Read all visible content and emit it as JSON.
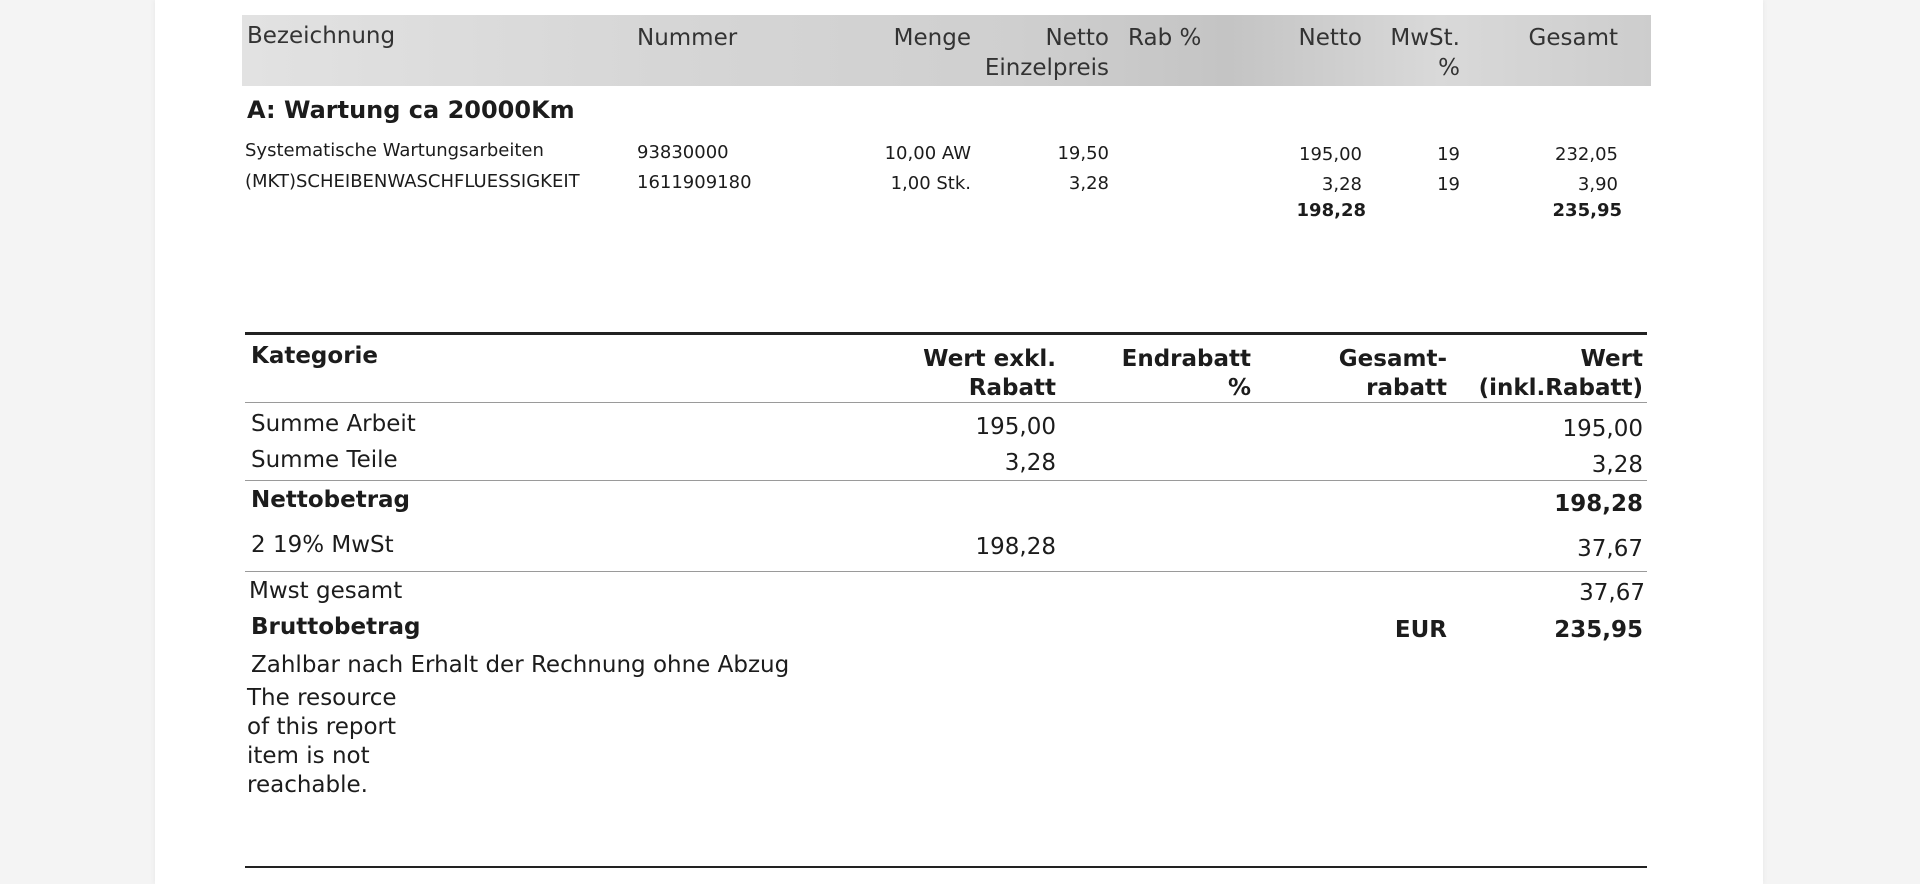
{
  "items_table": {
    "headers": {
      "bezeichnung": "Bezeichnung",
      "nummer": "Nummer",
      "menge": "Menge",
      "netto_einzelpreis_1": "Netto",
      "netto_einzelpreis_2": "Einzelpreis",
      "rab": "Rab %",
      "netto": "Netto",
      "mwst_1": "MwSt.",
      "mwst_2": "%",
      "gesamt": "Gesamt"
    },
    "section_title": "A:   Wartung ca 20000Km",
    "rows": [
      {
        "bezeichnung": "Systematische Wartungsarbeiten",
        "nummer": "93830000",
        "menge": "10,00 AW",
        "einzelpreis": "19,50",
        "rab": "",
        "netto": "195,00",
        "mwst": "19",
        "gesamt": "232,05"
      },
      {
        "bezeichnung": "(MKT)SCHEIBENWASCHFLUESSIGKEIT",
        "nummer": "1611909180",
        "menge": "1,00 Stk.",
        "einzelpreis": "3,28",
        "rab": "",
        "netto": "3,28",
        "mwst": "19",
        "gesamt": "3,90"
      }
    ],
    "totals": {
      "netto": "198,28",
      "gesamt": "235,95"
    }
  },
  "summary_table": {
    "headers": {
      "kategorie": "Kategorie",
      "wert_exkl_1": "Wert exkl.",
      "wert_exkl_2": "Rabatt",
      "endrabatt_1": "Endrabatt",
      "endrabatt_2": "%",
      "gesamtrabatt_1": "Gesamt-",
      "gesamtrabatt_2": "rabatt",
      "wert_1": "Wert",
      "wert_2": "(inkl.Rabatt)"
    },
    "summe_arbeit": {
      "label": "Summe Arbeit",
      "exkl": "195,00",
      "wert": "195,00"
    },
    "summe_teile": {
      "label": "Summe Teile",
      "exkl": "3,28",
      "wert": "3,28"
    },
    "nettobetrag": {
      "label": "Nettobetrag",
      "wert": "198,28"
    },
    "mwst": {
      "label": "2   19% MwSt",
      "exkl": "198,28",
      "wert": "37,67"
    },
    "mwst_gesamt": {
      "label": "Mwst gesamt",
      "wert": "37,67"
    },
    "bruttobetrag": {
      "label": "Bruttobetrag",
      "currency": "EUR",
      "wert": "235,95"
    },
    "payment_terms": "Zahlbar nach Erhalt der Rechnung ohne Abzug",
    "resource_error": [
      "The resource",
      "of this report",
      "item is not",
      "reachable."
    ]
  }
}
